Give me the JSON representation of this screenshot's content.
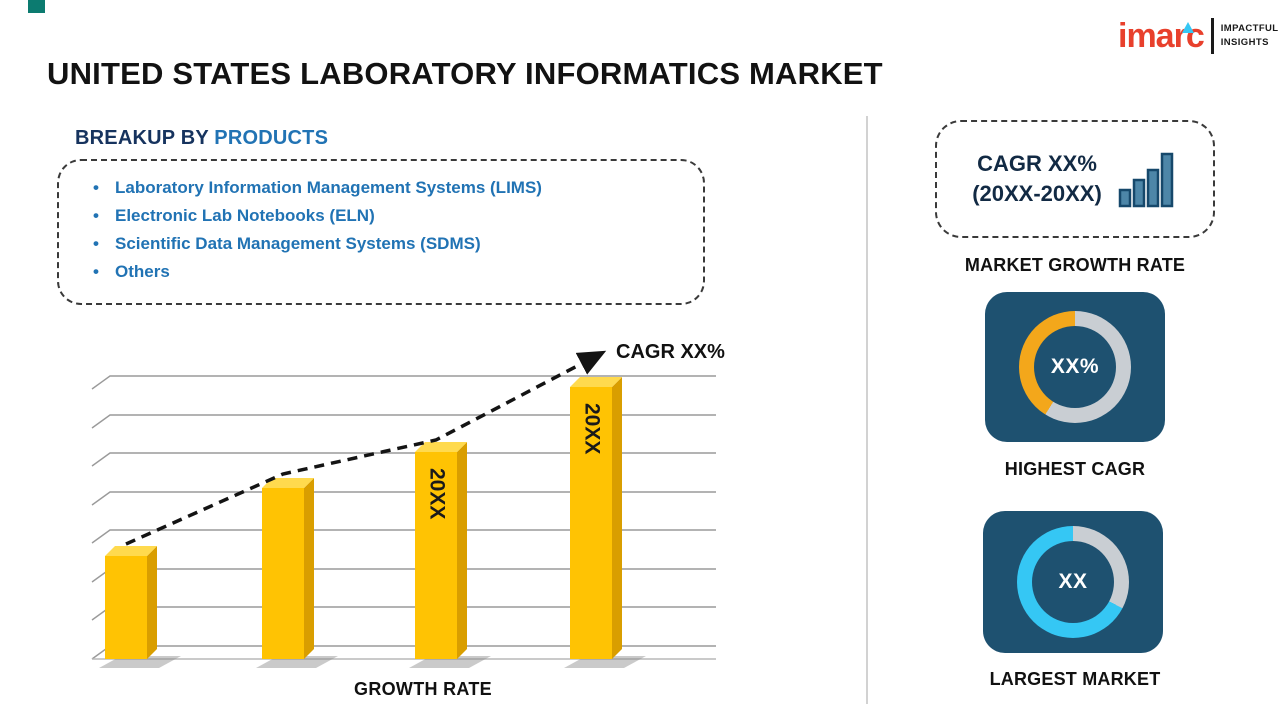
{
  "page_title": "UNITED STATES LABORATORY INFORMATICS MARKET",
  "logo": {
    "brand": "imarc",
    "tagline_line1": "IMPACTFUL",
    "tagline_line2": "INSIGHTS"
  },
  "breakup": {
    "heading_prefix": "BREAKUP BY ",
    "heading_highlight": "PRODUCTS",
    "items": [
      "Laboratory Information Management Systems (LIMS)",
      "Electronic Lab Notebooks (ELN)",
      "Scientific Data Management Systems (SDMS)",
      "Others"
    ]
  },
  "chart_data": {
    "type": "bar",
    "title": "GROWTH RATE",
    "xlabel": "GROWTH RATE",
    "ylabel": "",
    "categories": [
      "",
      "",
      "20XX",
      "20XX"
    ],
    "bar_labels": [
      "",
      "",
      "20XX",
      "20XX"
    ],
    "values": [
      38,
      63,
      76,
      100
    ],
    "ylim": [
      0,
      100
    ],
    "grid": true,
    "legend": false,
    "trend_label": "CAGR XX%",
    "colors": {
      "face": "#FFC303",
      "top": "#FFDA4E",
      "side": "#D99E00",
      "trend": "#141414"
    }
  },
  "right_panel": {
    "market_growth_rate": {
      "line1": "CAGR XX%",
      "line2": "(20XX-20XX)",
      "caption": "MARKET GROWTH RATE"
    },
    "highest_cagr": {
      "value": "XX%",
      "caption": "HIGHEST CAGR",
      "accent_color": "#F3A71B"
    },
    "largest_market": {
      "value": "XX",
      "caption": "LARGEST MARKET",
      "accent_color": "#35C7F4"
    }
  },
  "colors": {
    "tile_navy": "#1E5170",
    "ring_gray": "#C9CED3",
    "list_blue": "#2173B4",
    "heading_navy": "#16335E",
    "logo_red": "#E8402C",
    "logo_cyan": "#35C7F4",
    "corner_teal": "#0C7B70",
    "divider_gray": "#d2d2d2"
  }
}
